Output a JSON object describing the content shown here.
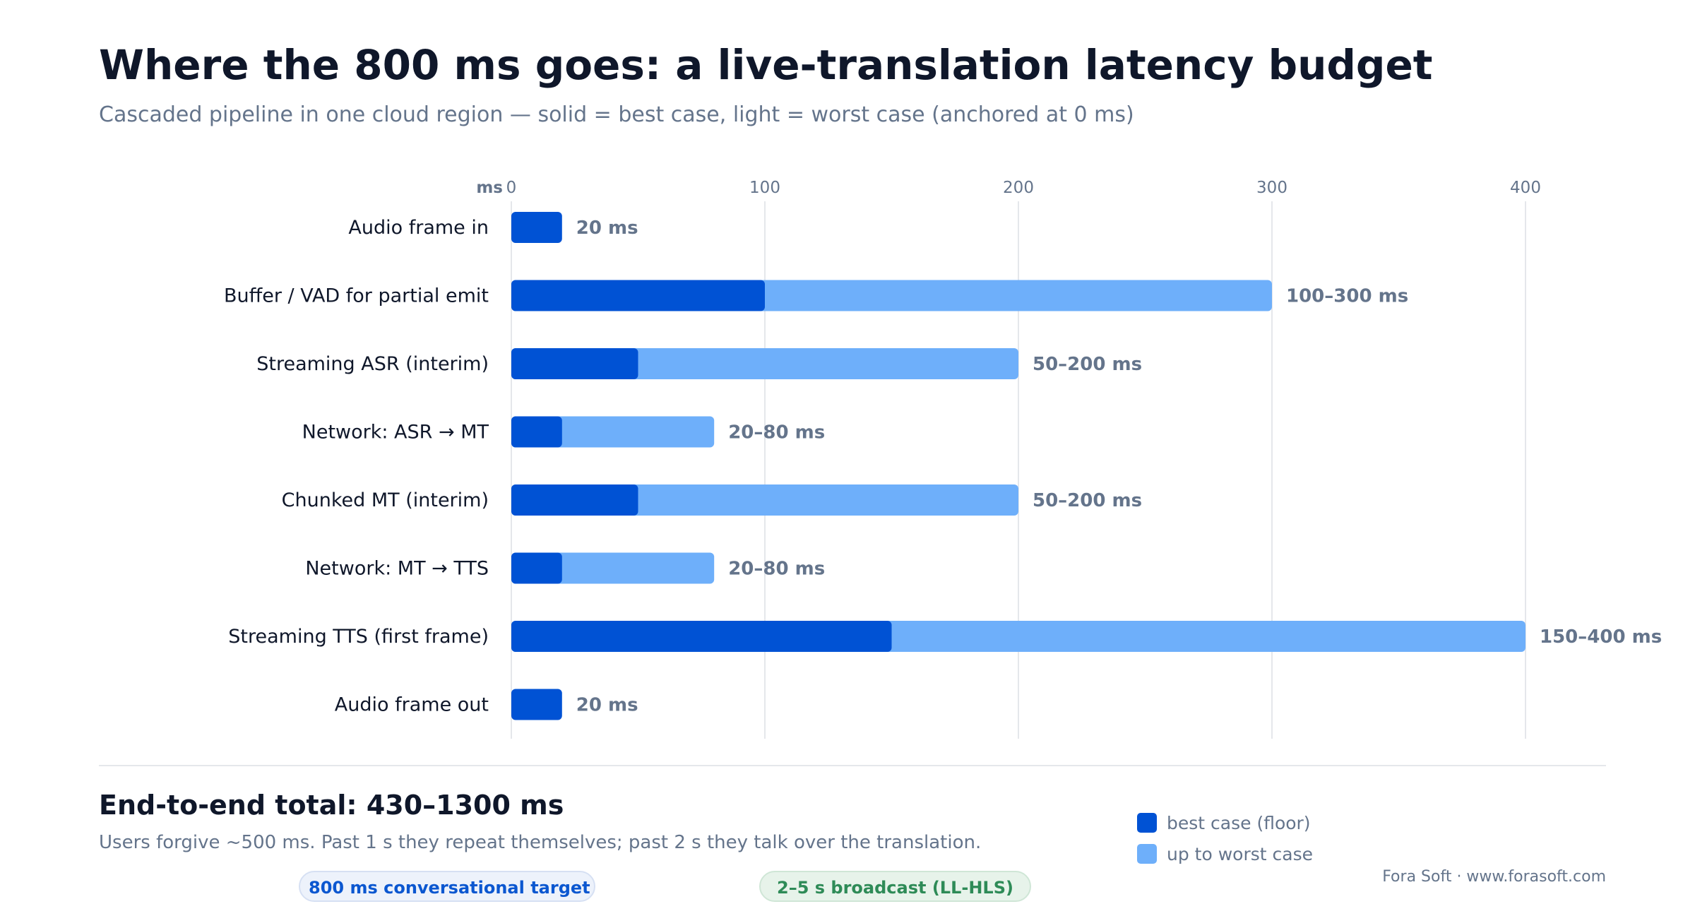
{
  "title": "Where the 800 ms goes: a live-translation latency budget",
  "subtitle": "Cascaded pipeline in one cloud region — solid = best case, light = worst case (anchored at 0 ms)",
  "colors": {
    "best": "#0052d4",
    "worst": "#6eaffa",
    "grid": "#e5e7eb",
    "axis_text": "#64748b",
    "label_text": "#0f172a"
  },
  "chart_data": {
    "type": "bar",
    "orientation": "horizontal",
    "x_unit_label": "ms",
    "xlim": [
      0,
      400
    ],
    "x_ticks": [
      0,
      100,
      200,
      300,
      400
    ],
    "grid": true,
    "categories": [
      "Audio frame in",
      "Buffer / VAD for partial emit",
      "Streaming ASR (interim)",
      "Network: ASR → MT",
      "Chunked MT (interim)",
      "Network: MT → TTS",
      "Streaming TTS (first frame)",
      "Audio frame out"
    ],
    "series": [
      {
        "name": "best case (floor)",
        "values": [
          20,
          100,
          50,
          20,
          50,
          20,
          150,
          20
        ]
      },
      {
        "name": "up to worst case",
        "values": [
          20,
          300,
          200,
          80,
          200,
          80,
          400,
          20
        ]
      }
    ],
    "data_labels": [
      "20 ms",
      "100–300 ms",
      "50–200 ms",
      "20–80 ms",
      "50–200 ms",
      "20–80 ms",
      "150–400 ms",
      "20 ms"
    ]
  },
  "summary": {
    "total": "End-to-end total: 430–1300 ms",
    "note": "Users forgive ~500 ms. Past 1 s they repeat themselves; past 2 s they talk over the translation."
  },
  "legend": [
    {
      "label": "best case (floor)",
      "color": "#0052d4"
    },
    {
      "label": "up to worst case",
      "color": "#6eaffa"
    }
  ],
  "badges": {
    "conversational": "800 ms conversational target",
    "broadcast": "2–5 s broadcast (LL-HLS)"
  },
  "credit": "Fora Soft · www.forasoft.com"
}
